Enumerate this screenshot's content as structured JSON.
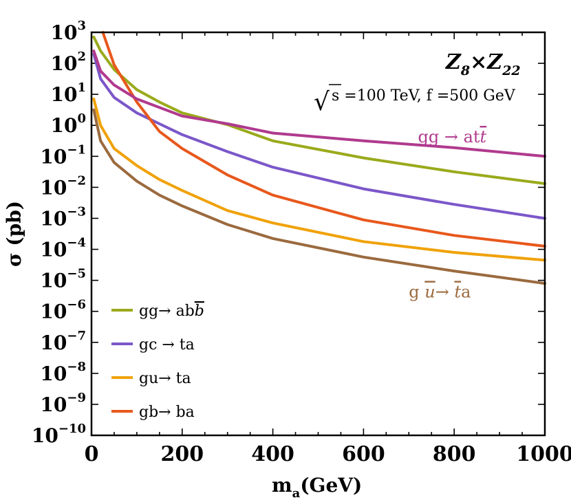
{
  "chart_data": {
    "type": "line",
    "title": "Z8×Z22",
    "title_parts": {
      "a": "Z",
      "a_sub": "8",
      "mid": "×Z",
      "b_sub": "22"
    },
    "subtitle": "s =100 TeV, f =500 GeV",
    "sqrt_symbol": "√",
    "xlabel": "m",
    "xlabel_sub": "a",
    "xlabel_unit": "(GeV)",
    "ylabel": "σ (pb)",
    "xlim": [
      0,
      1000
    ],
    "ylim_log10": [
      -10,
      3
    ],
    "y_scale": "log",
    "xticks": [
      0,
      200,
      400,
      600,
      800,
      1000
    ],
    "xtick_labels": [
      "0",
      "200",
      "400",
      "600",
      "800",
      "1000"
    ],
    "yticks_exp": [
      3,
      2,
      1,
      0,
      -1,
      -2,
      -3,
      -4,
      -5,
      -6,
      -7,
      -8,
      -9,
      -10
    ],
    "ytick_base": "10",
    "ytick_exp_labels": [
      "3",
      "2",
      "1",
      "0",
      "−1",
      "−2",
      "−3",
      "−4",
      "−5",
      "−6",
      "−7",
      "−8",
      "−9",
      "−10"
    ],
    "series": [
      {
        "name": "gg→ abb̄",
        "color": "#9aaa1c",
        "x": [
          5,
          20,
          50,
          100,
          150,
          200,
          300,
          400,
          600,
          800,
          1000
        ],
        "log10y": [
          2.85,
          2.4,
          1.8,
          1.15,
          0.75,
          0.4,
          0.02,
          -0.5,
          -1.05,
          -1.5,
          -1.88
        ]
      },
      {
        "name": "gc → ta",
        "color": "#7b57c9",
        "x": [
          5,
          20,
          50,
          100,
          150,
          200,
          300,
          400,
          600,
          800,
          1000
        ],
        "log10y": [
          2.3,
          1.5,
          0.9,
          0.4,
          0.05,
          -0.3,
          -0.85,
          -1.35,
          -2.05,
          -2.55,
          -3.0
        ]
      },
      {
        "name": "gu→ ta",
        "color": "#f0a20a",
        "x": [
          5,
          20,
          50,
          100,
          150,
          200,
          300,
          400,
          600,
          800,
          1000
        ],
        "log10y": [
          0.85,
          0.0,
          -0.75,
          -1.3,
          -1.75,
          -2.1,
          -2.75,
          -3.15,
          -3.75,
          -4.1,
          -4.35
        ]
      },
      {
        "name": "gb→ ba",
        "color": "#e8581c",
        "x": [
          25,
          50,
          100,
          150,
          200,
          300,
          400,
          600,
          800,
          1000
        ],
        "log10y": [
          3.0,
          1.95,
          0.75,
          -0.2,
          -0.75,
          -1.6,
          -2.25,
          -3.05,
          -3.55,
          -3.9
        ]
      },
      {
        "name": "gg → att̄",
        "color": "#b03a8e",
        "x": [
          5,
          20,
          50,
          100,
          200,
          300,
          400,
          600,
          800,
          1000
        ],
        "log10y": [
          2.4,
          1.75,
          1.3,
          0.85,
          0.3,
          0.05,
          -0.25,
          -0.5,
          -0.72,
          -1.0
        ]
      },
      {
        "name": "gū→ t̄a",
        "color": "#9b6a3e",
        "x": [
          5,
          20,
          50,
          100,
          150,
          200,
          300,
          400,
          600,
          800,
          1000
        ],
        "log10y": [
          0.5,
          -0.5,
          -1.2,
          -1.8,
          -2.25,
          -2.6,
          -3.2,
          -3.65,
          -4.25,
          -4.7,
          -5.1
        ]
      }
    ],
    "legend": {
      "position": "bottom-left",
      "items": [
        {
          "pre": "gg→ ab",
          "bar": "b",
          "post": "",
          "color": "#9aaa1c"
        },
        {
          "pre": "gc → ta",
          "bar": "",
          "post": "",
          "color": "#7b57c9"
        },
        {
          "pre": "gu→ ta",
          "bar": "",
          "post": "",
          "color": "#f0a20a"
        },
        {
          "pre": "gb→ ba",
          "bar": "",
          "post": "",
          "color": "#e8581c"
        }
      ]
    },
    "annotations": [
      {
        "id": "att",
        "pre": "gg → at",
        "bar": "t",
        "post": "",
        "color": "#b03a8e",
        "anchor_x": 720,
        "anchor_log10y": -0.55
      },
      {
        "id": "ut",
        "pre": "g ",
        "bar": "u",
        "mid": "→ ",
        "bar2": "t",
        "post": "a",
        "color": "#9b6a3e",
        "anchor_x": 700,
        "anchor_log10y": -5.55
      }
    ]
  }
}
